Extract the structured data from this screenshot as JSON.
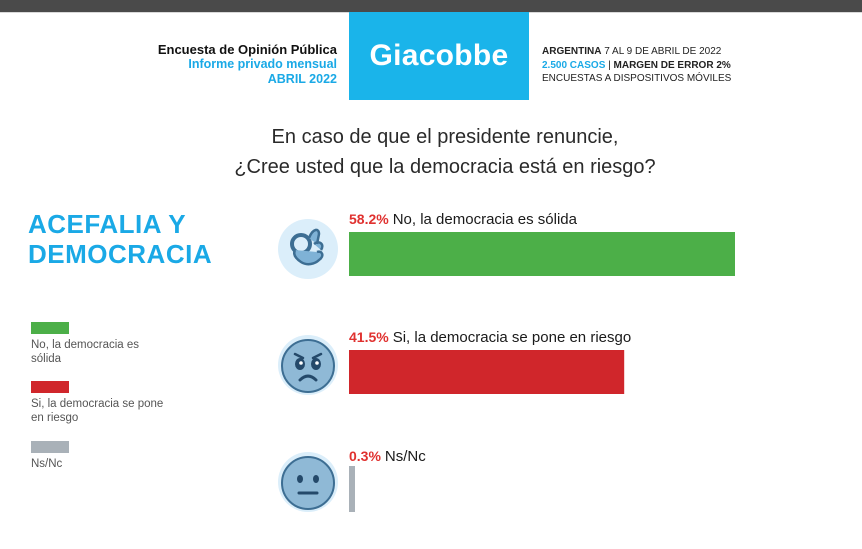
{
  "header": {
    "left_line1": "Encuesta de Opinión Pública",
    "left_line2": "Informe privado mensual",
    "left_line3": "ABRIL 2022",
    "brand": "Giacobbe",
    "right_line1_bold": "ARGENTINA",
    "right_line1_rest": " 7 AL 9 DE ABRIL DE 2022",
    "right_line2_cyan": "2.500 CASOS",
    "right_line2_sep": " | ",
    "right_line2_bold": "MARGEN DE ERROR 2%",
    "right_line3": "ENCUESTAS A DISPOSITIVOS MÓVILES"
  },
  "question": {
    "line1": "En caso de que el presidente renuncie,",
    "line2": "¿Cree usted que la democracia está en riesgo?"
  },
  "section": {
    "line1": "ACEFALIA Y",
    "line2": "DEMOCRACIA"
  },
  "colors": {
    "green": "#4caf48",
    "red": "#d0262b",
    "gray": "#a9b1b8",
    "cyan": "#1ab4ea"
  },
  "legend": [
    {
      "label": "No, la democracia es sólida",
      "color": "#4caf48"
    },
    {
      "label": "Si, la democracia se pone en riesgo",
      "color": "#d0262b"
    },
    {
      "label": "Ns/Nc",
      "color": "#a9b1b8"
    }
  ],
  "chart_data": {
    "type": "bar",
    "orientation": "horizontal",
    "title": "",
    "categories": [
      "No, la democracia es sólida",
      "Si, la democracia se pone en riesgo",
      "Ns/Nc"
    ],
    "series": [
      {
        "values": [
          58.2,
          41.5,
          0.3
        ]
      }
    ],
    "value_labels": [
      "58.2%",
      "41.5%",
      "0.3%"
    ],
    "bar_texts": [
      "No, la democracia es sólida",
      "Si, la democracia se pone en riesgo",
      "Ns/Nc"
    ],
    "icons": [
      "ok-hand-icon",
      "worried-face-icon",
      "neutral-face-icon"
    ],
    "xlim": [
      0,
      58.2
    ],
    "grid": false,
    "legend": "left"
  }
}
